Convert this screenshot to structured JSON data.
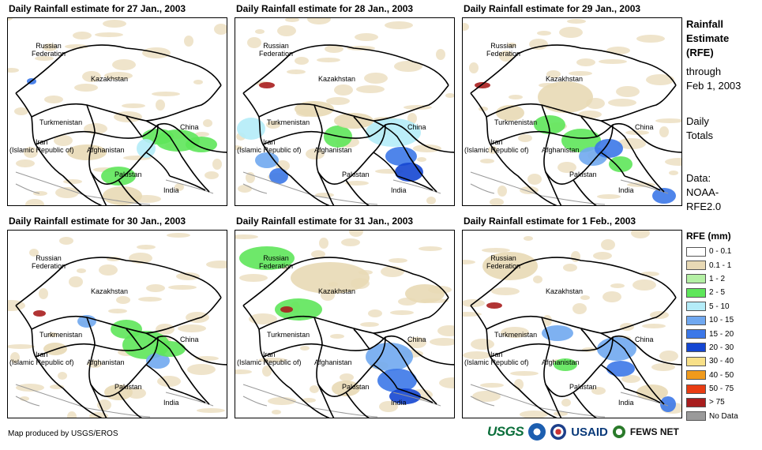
{
  "panels": [
    {
      "title": "Daily Rainfall estimate for 27 Jan., 2003"
    },
    {
      "title": "Daily Rainfall estimate for 28 Jan., 2003"
    },
    {
      "title": "Daily Rainfall estimate for 29 Jan., 2003"
    },
    {
      "title": "Daily Rainfall estimate for 30 Jan., 2003"
    },
    {
      "title": "Daily Rainfall estimate for 31 Jan., 2003"
    },
    {
      "title": "Daily Rainfall estimate for 1 Feb., 2003"
    }
  ],
  "labels": {
    "russia": "Russian\nFederation",
    "kazakhstan": "Kazakhstan",
    "turkmenistan": "Turkmenistan",
    "iran": "Iran\n(Islamic Republic of)",
    "afghanistan": "Afghanistan",
    "pakistan": "Pakistan",
    "india": "India",
    "china": "China"
  },
  "sidebar": {
    "title_lines": [
      "Rainfall",
      "Estimate",
      "(RFE)"
    ],
    "through_lines": [
      "through",
      "Feb 1, 2003"
    ],
    "totals_lines": [
      "Daily",
      "Totals"
    ],
    "data_lines": [
      "Data:",
      "NOAA-",
      "RFE2.0"
    ]
  },
  "legend": {
    "title": "RFE (mm)",
    "items": [
      {
        "label": "0 - 0.1",
        "color": "#ffffff"
      },
      {
        "label": "0.1 - 1",
        "color": "#e8d9b5"
      },
      {
        "label": "1 - 2",
        "color": "#b4f0a4"
      },
      {
        "label": "2 - 5",
        "color": "#5ee65a"
      },
      {
        "label": "5 - 10",
        "color": "#b4ecf8"
      },
      {
        "label": "10 - 15",
        "color": "#70a8f0"
      },
      {
        "label": "15 - 20",
        "color": "#3c78e8"
      },
      {
        "label": "20 - 30",
        "color": "#1446d2"
      },
      {
        "label": "30 - 40",
        "color": "#f8e088"
      },
      {
        "label": "40 - 50",
        "color": "#f09a1c"
      },
      {
        "label": "50 - 75",
        "color": "#e83c12"
      },
      {
        "label": "> 75",
        "color": "#a81e1e"
      },
      {
        "label": "No Data",
        "color": "#9a9a9a"
      }
    ]
  },
  "credit": "Map produced by USGS/EROS",
  "logos": {
    "usgs": "USGS",
    "usaid": "USAID",
    "fews": "FEWS NET"
  }
}
